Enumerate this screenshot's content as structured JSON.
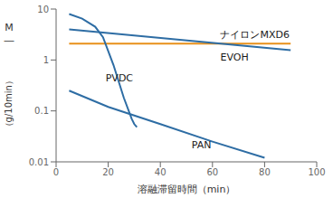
{
  "chart_data": {
    "type": "line",
    "xlabel": "溶融滞留時間（min）",
    "ylabel": [
      "M",
      "―",
      "（g/10min）"
    ],
    "log": "y",
    "grid": false,
    "xlim": [
      0,
      100
    ],
    "ylim": [
      0.01,
      10
    ],
    "xticks": [
      0,
      20,
      40,
      60,
      80,
      100
    ],
    "yticks": [
      0.01,
      0.1,
      1,
      10
    ],
    "series": [
      {
        "color": "#E8901A",
        "x": [
          5,
          90
        ],
        "values": [
          2.1,
          2.1
        ]
      },
      {
        "color": "#2E6DA4",
        "x": [
          5,
          90
        ],
        "values": [
          4.0,
          1.55
        ]
      },
      {
        "color": "#2E6DA4",
        "x": [
          5,
          10,
          15,
          18,
          22,
          26,
          29,
          30,
          31
        ],
        "values": [
          8.0,
          6.5,
          4.5,
          2.8,
          0.8,
          0.18,
          0.07,
          0.055,
          0.048
        ]
      },
      {
        "color": "#2E6DA4",
        "x": [
          5,
          20,
          40,
          60,
          80
        ],
        "values": [
          0.25,
          0.12,
          0.055,
          0.025,
          0.012
        ]
      }
    ],
    "annotations": [
      {
        "text": "ナイロンMXD6",
        "x": 63,
        "y": 3.2
      },
      {
        "text": "EVOH",
        "x": 63,
        "y": 1.15
      },
      {
        "text": "PVDC",
        "x": 19,
        "y": 0.45
      },
      {
        "text": "PAN",
        "x": 52,
        "y": 0.022
      }
    ]
  }
}
